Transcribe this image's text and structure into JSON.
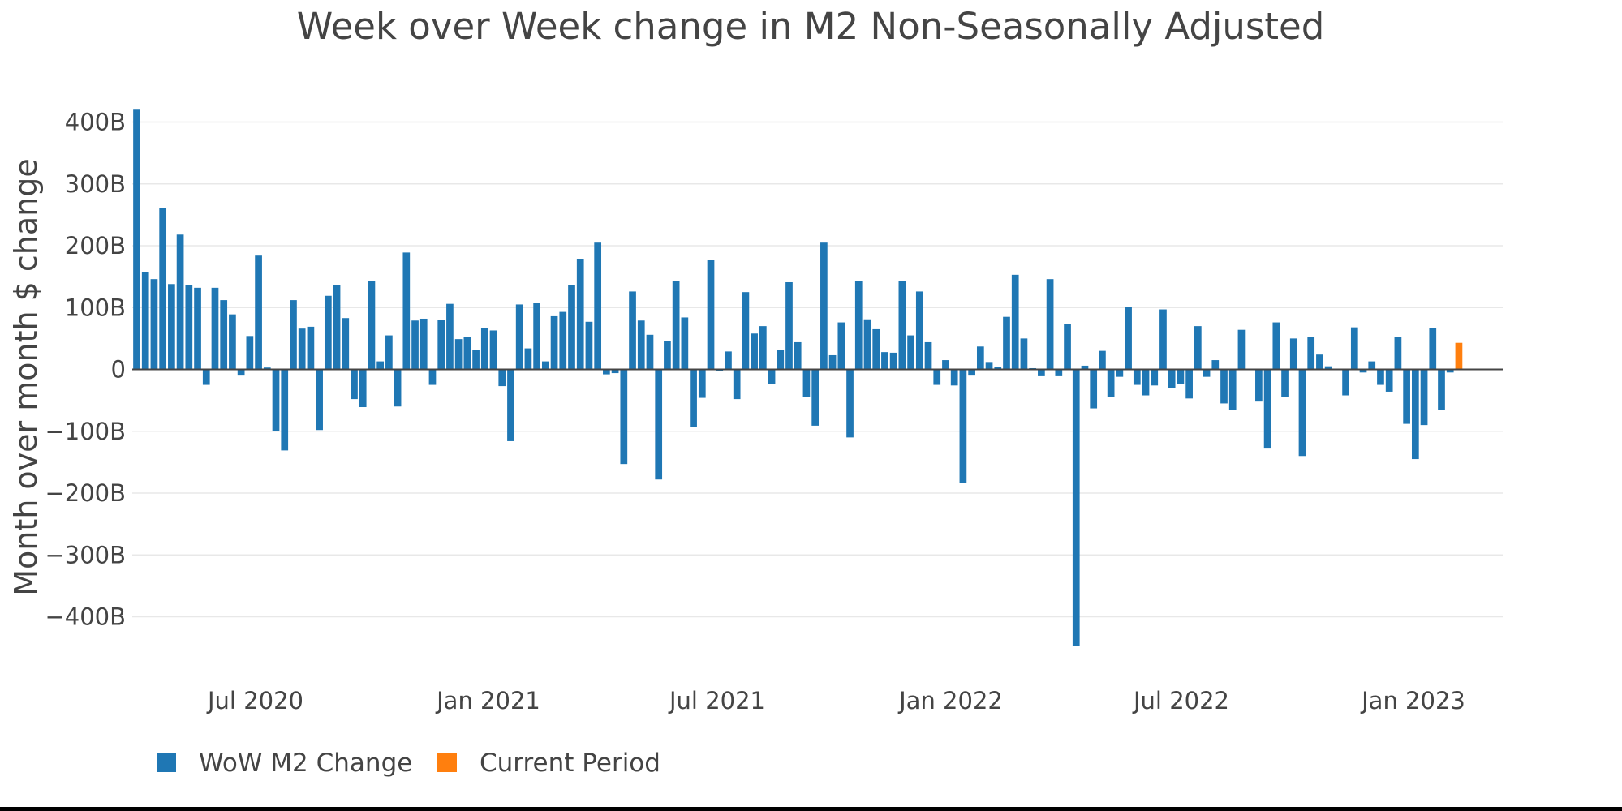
{
  "chart_data": {
    "type": "bar",
    "title": "Week over Week change in M2 Non-Seasonally Adjusted",
    "xlabel": "",
    "ylabel": "Month over month $ change",
    "ylim": [
      -450,
      430
    ],
    "x_ticks": [
      "Jul 2020",
      "Jan 2021",
      "Jul 2021",
      "Jan 2022",
      "Jul 2022",
      "Jan 2023"
    ],
    "y_ticks": [
      {
        "value": 400,
        "label": "400B"
      },
      {
        "value": 300,
        "label": "300B"
      },
      {
        "value": 200,
        "label": "200B"
      },
      {
        "value": 100,
        "label": "100B"
      },
      {
        "value": 0,
        "label": "0"
      },
      {
        "value": -100,
        "label": "−100B"
      },
      {
        "value": -200,
        "label": "−200B"
      },
      {
        "value": -300,
        "label": "−300B"
      },
      {
        "value": -400,
        "label": "−400B"
      }
    ],
    "grid": true,
    "legend_position": "bottom-left",
    "colors": {
      "wow": "#1f77b4",
      "current": "#ff7f0e"
    },
    "series": [
      {
        "name": "WoW M2 Change",
        "values": [
          420,
          158,
          146,
          261,
          138,
          218,
          137,
          132,
          -25,
          132,
          112,
          89,
          -10,
          54,
          184,
          3,
          -100,
          -131,
          112,
          66,
          69,
          -98,
          119,
          136,
          83,
          -48,
          -61,
          143,
          13,
          55,
          -60,
          189,
          79,
          82,
          -25,
          80,
          106,
          49,
          53,
          31,
          67,
          63,
          -27,
          -116,
          105,
          34,
          108,
          13,
          86,
          93,
          136,
          179,
          77,
          205,
          -8,
          -6,
          -153,
          126,
          79,
          56,
          -178,
          46,
          143,
          84,
          -93,
          -46,
          177,
          -3,
          29,
          -48,
          125,
          58,
          70,
          -24,
          31,
          141,
          44,
          -44,
          -91,
          205,
          23,
          76,
          -110,
          143,
          81,
          65,
          28,
          27,
          143,
          55,
          126,
          44,
          -25,
          15,
          -26,
          -183,
          -10,
          37,
          12,
          4,
          85,
          153,
          50,
          2,
          -11,
          146,
          -11,
          73,
          -447,
          6,
          -63,
          30,
          -44,
          -12,
          101,
          -25,
          -42,
          -26,
          97,
          -30,
          -24,
          -47,
          70,
          -12,
          15,
          -55,
          -66,
          64,
          0,
          -52,
          -128,
          76,
          -45,
          50,
          -140,
          52,
          24,
          5,
          0,
          -42,
          68,
          -5,
          13,
          -25,
          -36,
          52,
          -88,
          -145,
          -90,
          67,
          -66,
          -5
        ]
      },
      {
        "name": "Current Period",
        "values": [
          43
        ]
      }
    ]
  }
}
